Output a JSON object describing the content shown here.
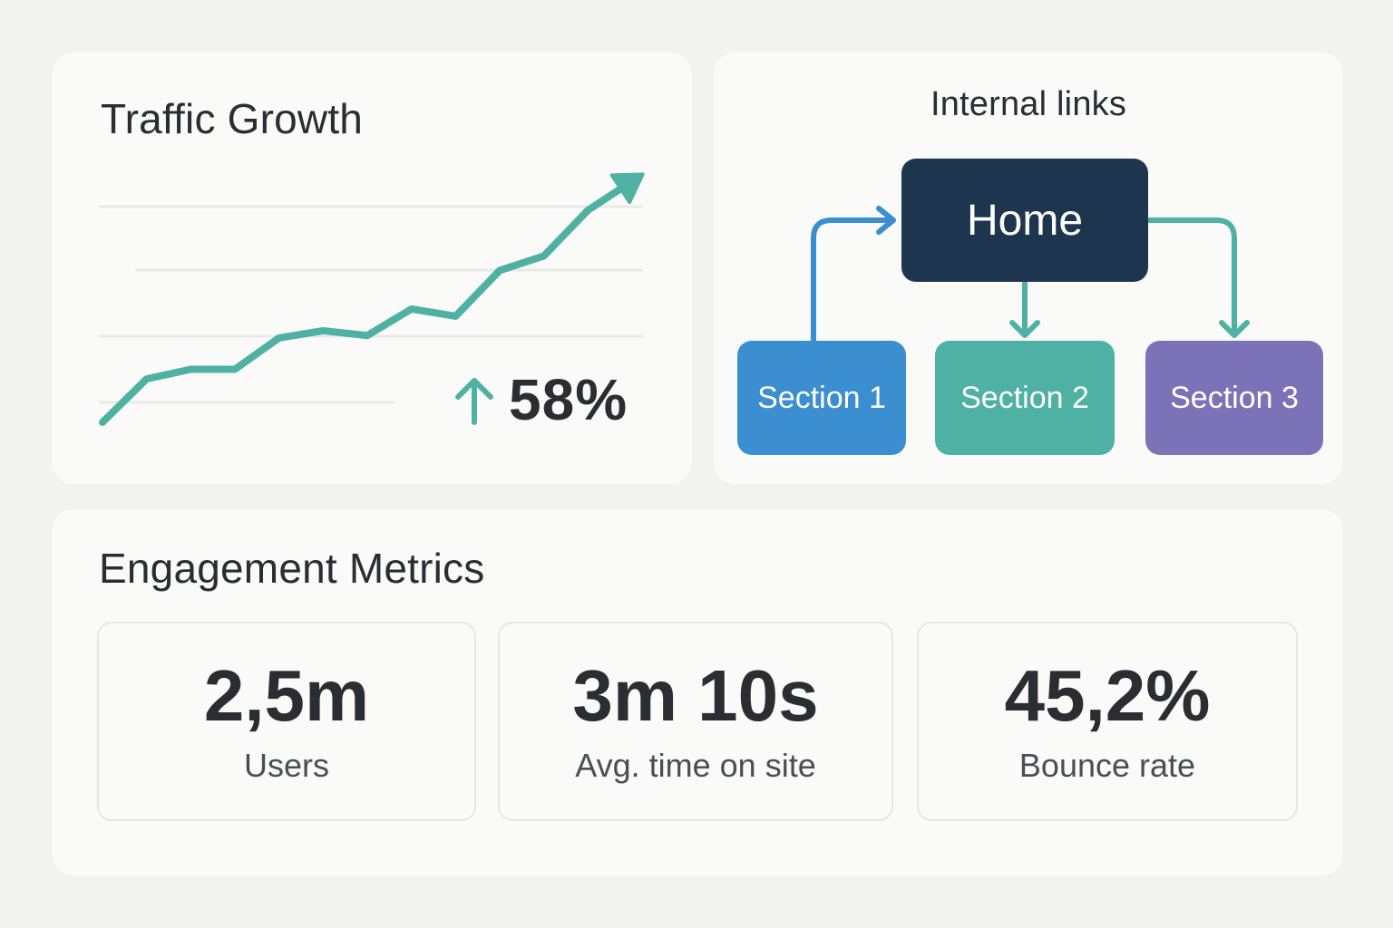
{
  "traffic": {
    "title": "Traffic Growth",
    "growth_value": "58%",
    "growth_direction": "up",
    "accent_color": "#4fb1a3",
    "trend_icon": "arrow-up-icon"
  },
  "chart_data": {
    "type": "line",
    "title": "Traffic Growth",
    "xlabel": "",
    "ylabel": "",
    "grid": true,
    "series": [
      {
        "values": [
          0,
          0.18,
          0.22,
          0.22,
          0.35,
          0.38,
          0.36,
          0.47,
          0.44,
          0.63,
          0.69,
          0.88,
          1.0
        ]
      }
    ]
  },
  "links": {
    "title": "Internal links",
    "home_label": "Home",
    "sections": [
      {
        "label": "Section 1",
        "color": "#3b8ed0"
      },
      {
        "label": "Section 2",
        "color": "#4fb1a3"
      },
      {
        "label": "Section 3",
        "color": "#7b72b8"
      }
    ],
    "home_color": "#1e3550"
  },
  "engagement": {
    "title": "Engagement Metrics",
    "metrics": [
      {
        "value": "2,5m",
        "label": "Users"
      },
      {
        "value": "3m 10s",
        "label": "Avg. time on site"
      },
      {
        "value": "45,2%",
        "label": "Bounce rate"
      }
    ]
  }
}
